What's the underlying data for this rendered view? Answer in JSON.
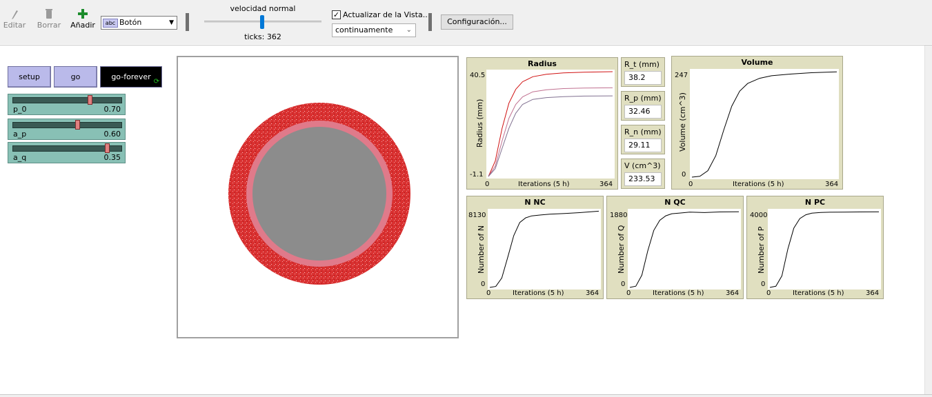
{
  "toolbar": {
    "edit_label": "Editar",
    "delete_label": "Borrar",
    "add_label": "Añadir",
    "widget_type": "Botón",
    "widget_type_icon_text": "abc",
    "speed_label": "velocidad normal",
    "ticks_label": "ticks: 362",
    "update_view_label": "Actualizar de la Vista...",
    "update_view_checked": true,
    "update_mode": "continuamente",
    "settings_label": "Configuración..."
  },
  "buttons": {
    "setup": "setup",
    "go": "go",
    "go_forever": "go-forever"
  },
  "sliders": [
    {
      "name": "p_0",
      "value_text": "0.70",
      "fraction": 0.72
    },
    {
      "name": "a_p",
      "value_text": "0.60",
      "fraction": 0.6
    },
    {
      "name": "a_q",
      "value_text": "0.35",
      "fraction": 0.88
    }
  ],
  "monitors": [
    {
      "label": "R_t (mm)",
      "value": "38.2"
    },
    {
      "label": "R_p (mm)",
      "value": "32.46"
    },
    {
      "label": "R_n (mm)",
      "value": "29.11"
    },
    {
      "label": "V (cm^3)",
      "value": "233.53"
    }
  ],
  "plots": {
    "radius": {
      "title": "Radius",
      "ylabel": "Radius (mm)",
      "xlabel": "Iterations (5 h)",
      "ymin": "-1.1",
      "ymax": "40.5",
      "xmin": "0",
      "xmax": "364"
    },
    "volume": {
      "title": "Volume",
      "ylabel": "Volume (cm^3)",
      "xlabel": "Iterations (5 h)",
      "ymin": "0",
      "ymax": "247",
      "xmin": "0",
      "xmax": "364"
    },
    "nnc": {
      "title": "N NC",
      "ylabel": "Number of N",
      "xlabel": "Iterations (5 h)",
      "ymin": "0",
      "ymax": "8130",
      "xmin": "0",
      "xmax": "364"
    },
    "nqc": {
      "title": "N QC",
      "ylabel": "Number of Q",
      "xlabel": "Iterations (5 h)",
      "ymin": "0",
      "ymax": "1880",
      "xmin": "0",
      "xmax": "364"
    },
    "npc": {
      "title": "N PC",
      "ylabel": "Number of P",
      "xlabel": "Iterations (5 h)",
      "ymin": "0",
      "ymax": "4000",
      "xmin": "0",
      "xmax": "364"
    }
  },
  "colors": {
    "button_bg": "#babaea",
    "slider_bg": "#88c0b5",
    "plot_bg": "#e0dfc0",
    "tumor_outer": "#d93030",
    "tumor_middle": "#e07a8a",
    "tumor_core": "#8c8c8c"
  },
  "chart_data": [
    {
      "type": "line",
      "title": "Radius",
      "xlabel": "Iterations (5 h)",
      "ylabel": "Radius (mm)",
      "xlim": [
        0,
        364
      ],
      "ylim": [
        -1.1,
        40.5
      ],
      "series": [
        {
          "color": "#d01010",
          "x": [
            0,
            20,
            40,
            60,
            80,
            100,
            130,
            170,
            220,
            280,
            364
          ],
          "y": [
            -1.1,
            5,
            18,
            28,
            33.5,
            36.5,
            38.5,
            39.5,
            40.0,
            40.3,
            40.5
          ]
        },
        {
          "color": "#c07090",
          "x": [
            0,
            20,
            40,
            60,
            80,
            100,
            130,
            170,
            220,
            280,
            364
          ],
          "y": [
            -1.1,
            3,
            13,
            22,
            27.5,
            30.5,
            32.5,
            33.3,
            33.8,
            34.0,
            34.1
          ]
        },
        {
          "color": "#807090",
          "x": [
            0,
            20,
            40,
            60,
            80,
            100,
            130,
            170,
            220,
            280,
            364
          ],
          "y": [
            -1.1,
            2,
            10,
            18,
            24,
            27.5,
            29.5,
            30.2,
            30.6,
            30.8,
            30.9
          ]
        }
      ]
    },
    {
      "type": "line",
      "title": "Volume",
      "xlabel": "Iterations (5 h)",
      "ylabel": "Volume (cm^3)",
      "xlim": [
        0,
        364
      ],
      "ylim": [
        0,
        247
      ],
      "series": [
        {
          "color": "#000000",
          "x": [
            0,
            20,
            40,
            60,
            80,
            100,
            120,
            140,
            170,
            200,
            250,
            300,
            364
          ],
          "y": [
            0,
            2,
            15,
            50,
            110,
            165,
            200,
            218,
            230,
            236,
            240,
            243,
            245
          ]
        }
      ]
    },
    {
      "type": "line",
      "title": "N NC",
      "xlabel": "Iterations (5 h)",
      "ylabel": "Number of N",
      "xlim": [
        0,
        364
      ],
      "ylim": [
        0,
        8130
      ],
      "series": [
        {
          "color": "#000000",
          "x": [
            0,
            20,
            40,
            60,
            80,
            100,
            120,
            140,
            170,
            200,
            250,
            300,
            364
          ],
          "y": [
            0,
            100,
            1000,
            3200,
            5500,
            6900,
            7400,
            7600,
            7700,
            7780,
            7850,
            7950,
            8100
          ]
        }
      ]
    },
    {
      "type": "line",
      "title": "N QC",
      "xlabel": "Iterations (5 h)",
      "ylabel": "Number of Q",
      "xlim": [
        0,
        364
      ],
      "ylim": [
        0,
        1880
      ],
      "series": [
        {
          "color": "#000000",
          "x": [
            0,
            20,
            40,
            60,
            80,
            100,
            120,
            140,
            170,
            200,
            250,
            300,
            364
          ],
          "y": [
            0,
            30,
            300,
            900,
            1400,
            1650,
            1760,
            1810,
            1830,
            1850,
            1840,
            1855,
            1860
          ]
        }
      ]
    },
    {
      "type": "line",
      "title": "N PC",
      "xlabel": "Iterations (5 h)",
      "ylabel": "Number of P",
      "xlim": [
        0,
        364
      ],
      "ylim": [
        0,
        4000
      ],
      "series": [
        {
          "color": "#000000",
          "x": [
            0,
            20,
            40,
            60,
            80,
            100,
            120,
            140,
            170,
            200,
            250,
            300,
            364
          ],
          "y": [
            0,
            60,
            600,
            2000,
            3100,
            3600,
            3800,
            3880,
            3920,
            3930,
            3940,
            3945,
            3950
          ]
        }
      ]
    }
  ]
}
